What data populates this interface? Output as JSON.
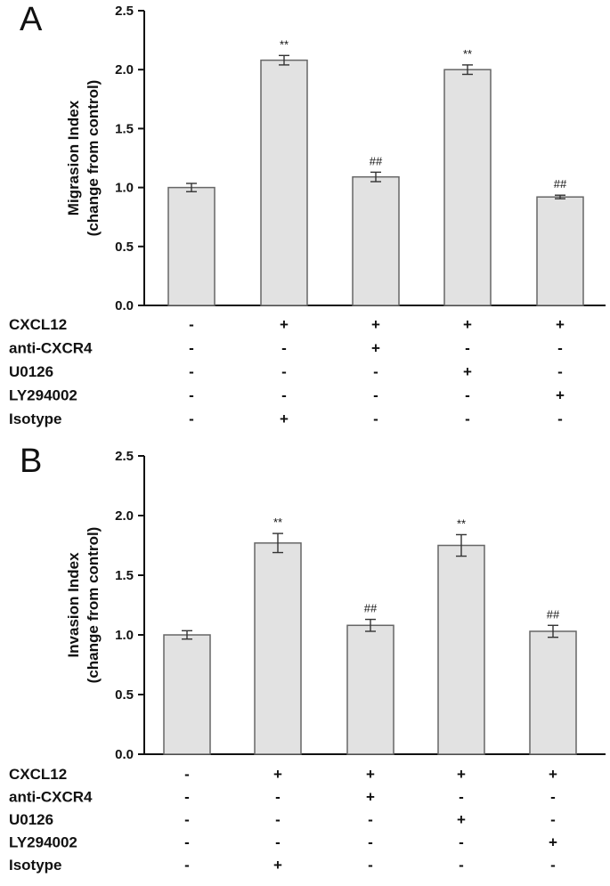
{
  "chart_data": [
    {
      "panel": "A",
      "type": "bar",
      "ylabel_line1": "Migrasion Index",
      "ylabel_line2": "(change from control)",
      "ylim": [
        0,
        2.5
      ],
      "yticks": [
        "0.0",
        "0.5",
        "1.0",
        "1.5",
        "2.0",
        "2.5"
      ],
      "values": [
        1.0,
        2.08,
        1.09,
        2.0,
        0.92
      ],
      "errors": [
        0.035,
        0.04,
        0.04,
        0.04,
        0.015
      ],
      "annotations": [
        "",
        "**",
        "##",
        "**",
        "##"
      ],
      "conditions": [
        {
          "name": "CXCL12",
          "signs": [
            "-",
            "+",
            "+",
            "+",
            "+"
          ]
        },
        {
          "name": "anti-CXCR4",
          "signs": [
            "-",
            "-",
            "+",
            "-",
            "-"
          ]
        },
        {
          "name": "U0126",
          "signs": [
            "-",
            "-",
            "-",
            "+",
            "-"
          ]
        },
        {
          "name": "LY294002",
          "signs": [
            "-",
            "-",
            "-",
            "-",
            "+"
          ]
        },
        {
          "name": "Isotype",
          "signs": [
            "-",
            "+",
            "-",
            "-",
            "-"
          ]
        }
      ]
    },
    {
      "panel": "B",
      "type": "bar",
      "ylabel_line1": "Invasion Index",
      "ylabel_line2": "(change from control)",
      "ylim": [
        0,
        2.5
      ],
      "yticks": [
        "0.0",
        "0.5",
        "1.0",
        "1.5",
        "2.0",
        "2.5"
      ],
      "values": [
        1.0,
        1.77,
        1.08,
        1.75,
        1.03
      ],
      "errors": [
        0.035,
        0.08,
        0.05,
        0.09,
        0.05
      ],
      "annotations": [
        "",
        "**",
        "##",
        "**",
        "##"
      ],
      "conditions": [
        {
          "name": "CXCL12",
          "signs": [
            "-",
            "+",
            "+",
            "+",
            "+"
          ]
        },
        {
          "name": "anti-CXCR4",
          "signs": [
            "-",
            "-",
            "+",
            "-",
            "-"
          ]
        },
        {
          "name": "U0126",
          "signs": [
            "-",
            "-",
            "-",
            "+",
            "-"
          ]
        },
        {
          "name": "LY294002",
          "signs": [
            "-",
            "-",
            "-",
            "-",
            "+"
          ]
        },
        {
          "name": "Isotype",
          "signs": [
            "-",
            "+",
            "-",
            "-",
            "-"
          ]
        }
      ]
    }
  ]
}
